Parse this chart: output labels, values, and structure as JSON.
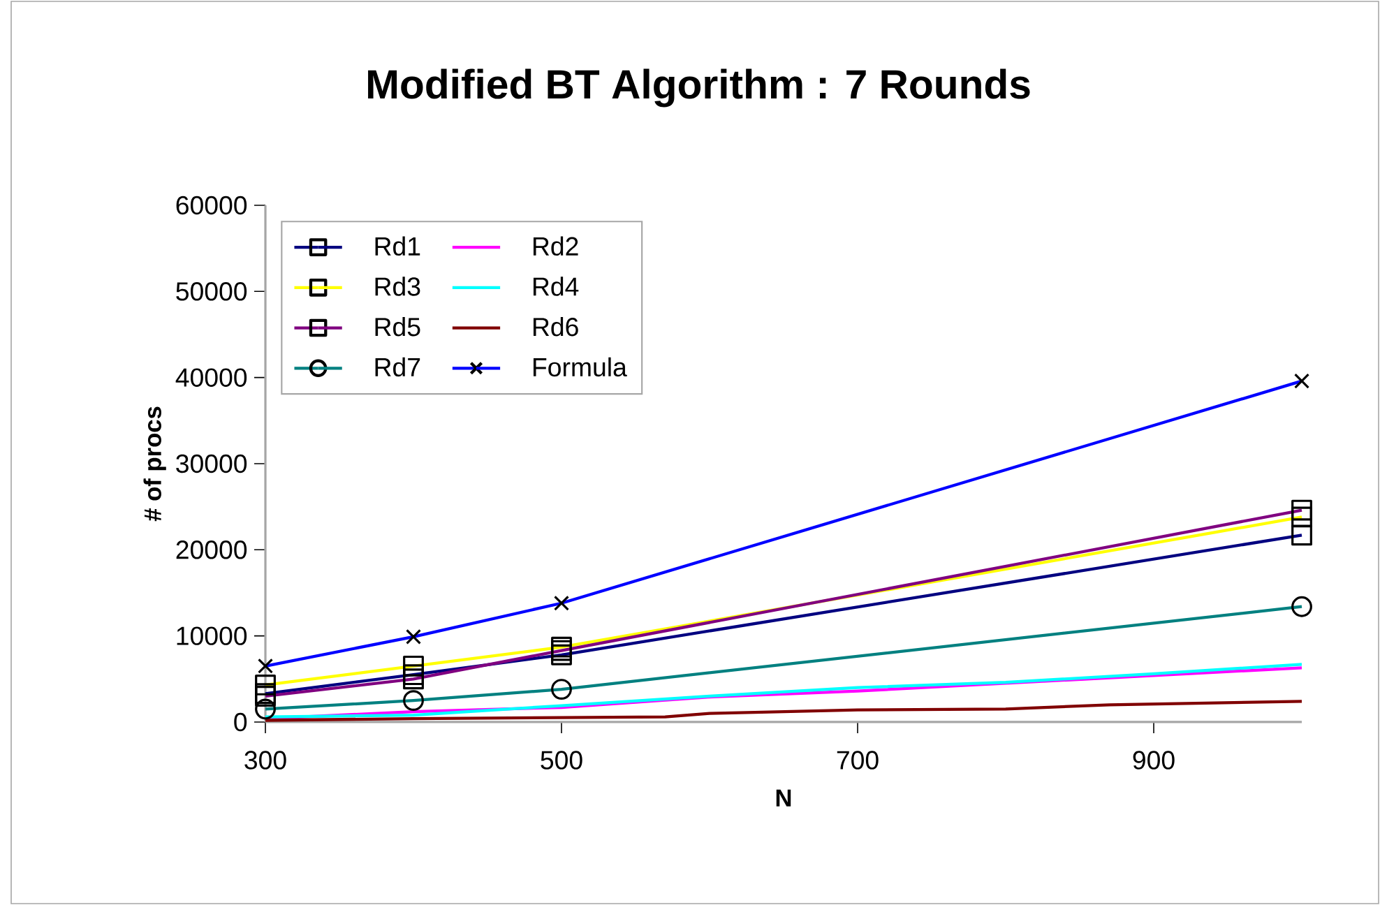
{
  "chart_data": {
    "type": "line",
    "title": "Modified  BT  Algorithm  :  7  Rounds",
    "xlabel": "N",
    "ylabel": "#  of  procs",
    "xlim": [
      300,
      1000
    ],
    "xticks": [
      300,
      500,
      700,
      900
    ],
    "ylim": [
      0,
      60000
    ],
    "yticks": [
      0,
      10000,
      20000,
      30000,
      40000,
      50000,
      60000
    ],
    "grid": false,
    "legend": "top left",
    "series": [
      {
        "name": "Rd1",
        "color": "#000080",
        "marker": "square",
        "x": [
          300,
          400,
          500,
          1000
        ],
        "values": [
          3300,
          5500,
          7800,
          21700
        ]
      },
      {
        "name": "Rd2",
        "color": "#ff00ff",
        "marker": "none",
        "x": [
          300,
          400,
          500,
          600,
          700,
          800,
          900,
          1000
        ],
        "values": [
          400,
          1200,
          1700,
          2900,
          3600,
          4500,
          5400,
          6300
        ]
      },
      {
        "name": "Rd3",
        "color": "#ffff00",
        "marker": "square",
        "x": [
          300,
          400,
          500,
          1000
        ],
        "values": [
          4300,
          6500,
          8700,
          23800
        ]
      },
      {
        "name": "Rd4",
        "color": "#00ffff",
        "marker": "none",
        "x": [
          300,
          400,
          500,
          600,
          700,
          800,
          900,
          1000
        ],
        "values": [
          600,
          800,
          1900,
          3000,
          4000,
          4600,
          5600,
          6700
        ]
      },
      {
        "name": "Rd5",
        "color": "#800080",
        "marker": "square",
        "x": [
          300,
          400,
          500,
          1000
        ],
        "values": [
          3000,
          5000,
          8300,
          24600
        ]
      },
      {
        "name": "Rd6",
        "color": "#800000",
        "marker": "none",
        "x": [
          300,
          400,
          570,
          600,
          700,
          800,
          870,
          1000
        ],
        "values": [
          200,
          400,
          600,
          1000,
          1400,
          1500,
          2000,
          2400
        ]
      },
      {
        "name": "Rd7",
        "color": "#008080",
        "marker": "circle",
        "x": [
          300,
          400,
          500,
          1000
        ],
        "values": [
          1500,
          2500,
          3800,
          13400
        ]
      },
      {
        "name": "Formula",
        "color": "#0000ff",
        "marker": "cross",
        "x": [
          300,
          400,
          500,
          1000
        ],
        "values": [
          6500,
          9900,
          13800,
          39600
        ]
      }
    ]
  }
}
